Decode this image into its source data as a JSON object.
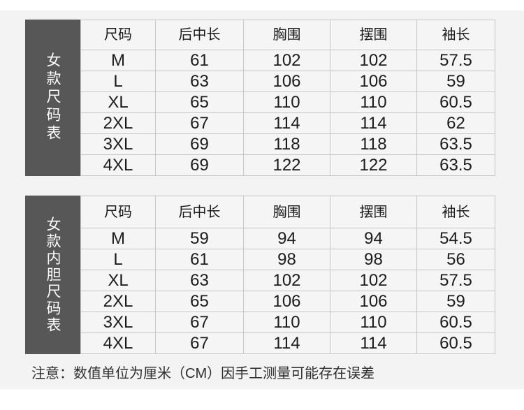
{
  "tables": [
    {
      "side_label": "女款尺码表",
      "headers": [
        "尺码",
        "后中长",
        "胸围",
        "摆围",
        "袖长"
      ],
      "rows": [
        [
          "M",
          "61",
          "102",
          "102",
          "57.5"
        ],
        [
          "L",
          "63",
          "106",
          "106",
          "59"
        ],
        [
          "XL",
          "65",
          "110",
          "110",
          "60.5"
        ],
        [
          "2XL",
          "67",
          "114",
          "114",
          "62"
        ],
        [
          "3XL",
          "69",
          "118",
          "118",
          "63.5"
        ],
        [
          "4XL",
          "69",
          "122",
          "122",
          "63.5"
        ]
      ]
    },
    {
      "side_label": "女款内胆尺码表",
      "headers": [
        "尺码",
        "后中长",
        "胸围",
        "摆围",
        "袖长"
      ],
      "rows": [
        [
          "M",
          "59",
          "94",
          "94",
          "54.5"
        ],
        [
          "L",
          "61",
          "98",
          "98",
          "56"
        ],
        [
          "XL",
          "63",
          "102",
          "102",
          "57.5"
        ],
        [
          "2XL",
          "65",
          "106",
          "106",
          "59"
        ],
        [
          "3XL",
          "67",
          "110",
          "110",
          "60.5"
        ],
        [
          "4XL",
          "67",
          "114",
          "114",
          "60.5"
        ]
      ]
    }
  ],
  "note": "注意：数值单位为厘米（CM）因手工测量可能存在误差",
  "unit": "CM",
  "colors": {
    "side_bar_bg": "#575757",
    "side_bar_text": "#ffffff",
    "page_bg": "#f3f3f3",
    "cell_bg": "#f5f5f5",
    "cell_border": "#c6c6c6",
    "text": "#1c1c1c"
  }
}
